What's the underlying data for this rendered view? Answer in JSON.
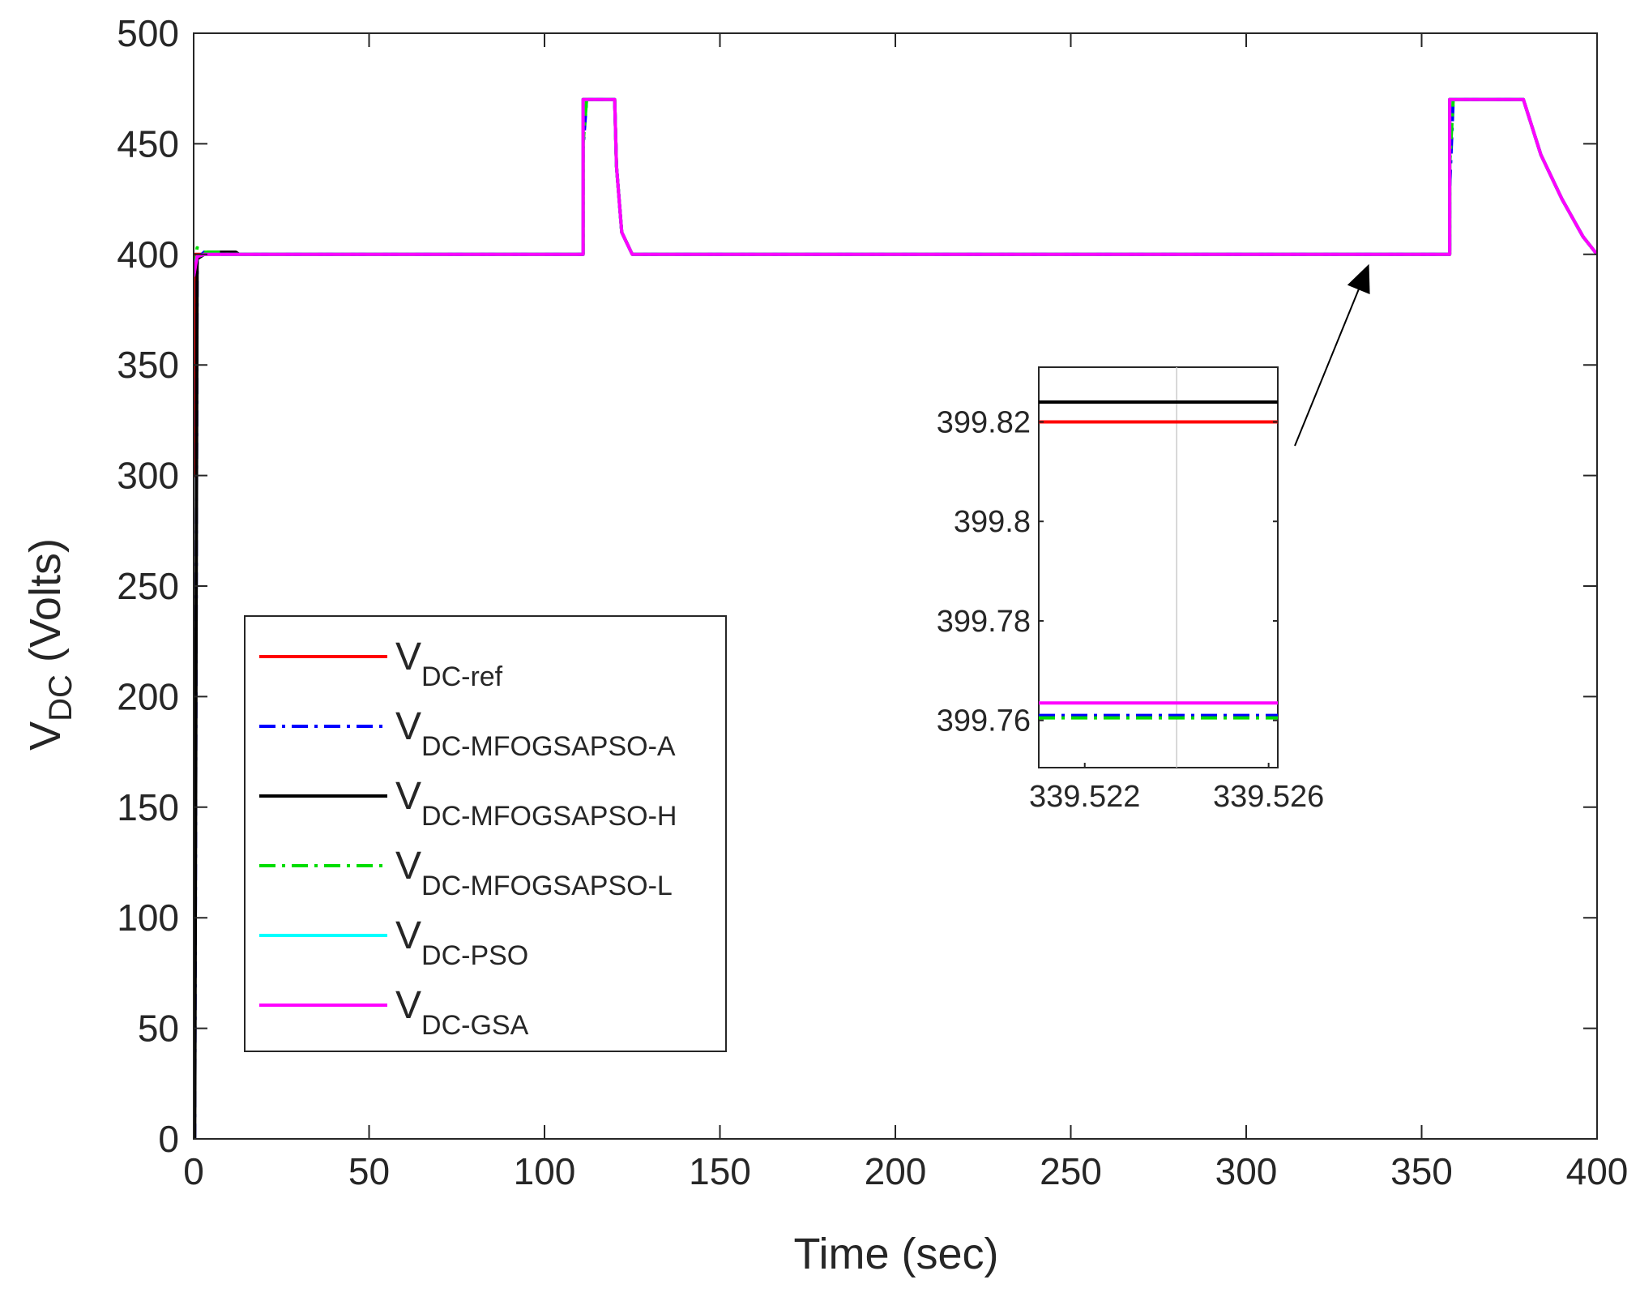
{
  "chart_data": {
    "type": "line",
    "xlabel": "Time (sec)",
    "ylabel_main": "V",
    "ylabel_sub": "DC",
    "ylabel_unit": " (Volts)",
    "xlim": [
      0,
      400
    ],
    "ylim": [
      0,
      500
    ],
    "xticks": [
      "0",
      "50",
      "100",
      "150",
      "200",
      "250",
      "300",
      "350",
      "400"
    ],
    "yticks": [
      "0",
      "50",
      "100",
      "150",
      "200",
      "250",
      "300",
      "350",
      "400",
      "450",
      "500"
    ],
    "series": [
      {
        "name": "V",
        "sub": "DC-ref",
        "color": "#ff0000",
        "dash": "solid",
        "points": [
          [
            0,
            300
          ],
          [
            0.5,
            300
          ],
          [
            0.5,
            400
          ],
          [
            111,
            400
          ],
          [
            111,
            470
          ],
          [
            120,
            470
          ],
          [
            120.5,
            440
          ],
          [
            122,
            410
          ],
          [
            125,
            400
          ],
          [
            358,
            400
          ],
          [
            358,
            470
          ],
          [
            379,
            470
          ],
          [
            384,
            445
          ],
          [
            390,
            425
          ],
          [
            396,
            408
          ],
          [
            400,
            400
          ]
        ]
      },
      {
        "name": "V",
        "sub": "DC-MFOGSAPSO-A",
        "color": "#0000ff",
        "dash": "dashdot",
        "points": [
          [
            0,
            0
          ],
          [
            0.3,
            0
          ],
          [
            1,
            398
          ],
          [
            3,
            401
          ],
          [
            6,
            400
          ],
          [
            111,
            400
          ],
          [
            111,
            448
          ],
          [
            112,
            470
          ],
          [
            120,
            470
          ],
          [
            120.5,
            440
          ],
          [
            122,
            410
          ],
          [
            125,
            400
          ],
          [
            358,
            400
          ],
          [
            358,
            430
          ],
          [
            359,
            470
          ],
          [
            379,
            470
          ],
          [
            384,
            445
          ],
          [
            390,
            425
          ],
          [
            396,
            408
          ],
          [
            400,
            400
          ]
        ]
      },
      {
        "name": "V",
        "sub": "DC-MFOGSAPSO-H",
        "color": "#000000",
        "dash": "solid",
        "points": [
          [
            0,
            0
          ],
          [
            0.3,
            0
          ],
          [
            1,
            398
          ],
          [
            4,
            401
          ],
          [
            12,
            401
          ],
          [
            13,
            400
          ],
          [
            111,
            400
          ],
          [
            111,
            470
          ],
          [
            120,
            470
          ],
          [
            120.5,
            440
          ],
          [
            122,
            410
          ],
          [
            125,
            400
          ],
          [
            358,
            400
          ],
          [
            358,
            470
          ],
          [
            379,
            470
          ],
          [
            384,
            445
          ],
          [
            390,
            425
          ],
          [
            396,
            408
          ],
          [
            400,
            400
          ]
        ]
      },
      {
        "name": "V",
        "sub": "DC-MFOGSAPSO-L",
        "color": "#00dd00",
        "dash": "dashdot",
        "points": [
          [
            0,
            392
          ],
          [
            1,
            403
          ],
          [
            3,
            401
          ],
          [
            8,
            401
          ],
          [
            9,
            400
          ],
          [
            111,
            400
          ],
          [
            111,
            450
          ],
          [
            112,
            470
          ],
          [
            120,
            470
          ],
          [
            120.5,
            440
          ],
          [
            122,
            410
          ],
          [
            125,
            400
          ],
          [
            358,
            400
          ],
          [
            358,
            440
          ],
          [
            359,
            470
          ],
          [
            379,
            470
          ],
          [
            384,
            445
          ],
          [
            390,
            425
          ],
          [
            396,
            408
          ],
          [
            400,
            400
          ]
        ]
      },
      {
        "name": "V",
        "sub": "DC-PSO",
        "color": "#00ffff",
        "dash": "solid",
        "points": [
          [
            0,
            392
          ],
          [
            1,
            399
          ],
          [
            3,
            400
          ],
          [
            111,
            400
          ],
          [
            111,
            470
          ],
          [
            120,
            470
          ],
          [
            120.5,
            440
          ],
          [
            122,
            410
          ],
          [
            125,
            400
          ],
          [
            358,
            400
          ],
          [
            358,
            470
          ],
          [
            379,
            470
          ],
          [
            384,
            445
          ],
          [
            390,
            425
          ],
          [
            396,
            408
          ],
          [
            400,
            400
          ]
        ]
      },
      {
        "name": "V",
        "sub": "DC-GSA",
        "color": "#ff00ff",
        "dash": "solid",
        "points": [
          [
            0,
            390
          ],
          [
            1,
            399
          ],
          [
            3,
            400
          ],
          [
            111,
            400
          ],
          [
            111,
            470
          ],
          [
            120,
            470
          ],
          [
            120.5,
            440
          ],
          [
            122,
            410
          ],
          [
            125,
            400
          ],
          [
            358,
            400
          ],
          [
            358,
            470
          ],
          [
            379,
            470
          ],
          [
            384,
            445
          ],
          [
            390,
            425
          ],
          [
            396,
            408
          ],
          [
            400,
            400
          ]
        ]
      }
    ],
    "inset": {
      "xlim": [
        339.521,
        339.5262
      ],
      "ylim": [
        399.7505,
        399.831
      ],
      "xticks": [
        339.522,
        339.526
      ],
      "xtick_labels": [
        "339.522",
        "339.526"
      ],
      "yticks": [
        399.76,
        399.78,
        399.8,
        399.82
      ],
      "ytick_labels": [
        "399.76",
        "399.78",
        "399.8",
        "399.82"
      ],
      "levels": [
        {
          "series": "DC-MFOGSAPSO-H",
          "value": 399.824
        },
        {
          "series": "DC-ref",
          "value": 399.82
        },
        {
          "series": "DC-GSA",
          "value": 399.7635
        },
        {
          "series": "DC-MFOGSAPSO-A",
          "value": 399.761
        },
        {
          "series": "DC-MFOGSAPSO-L",
          "value": 399.7605
        }
      ],
      "arrow_target": [
        335,
        400
      ]
    }
  }
}
